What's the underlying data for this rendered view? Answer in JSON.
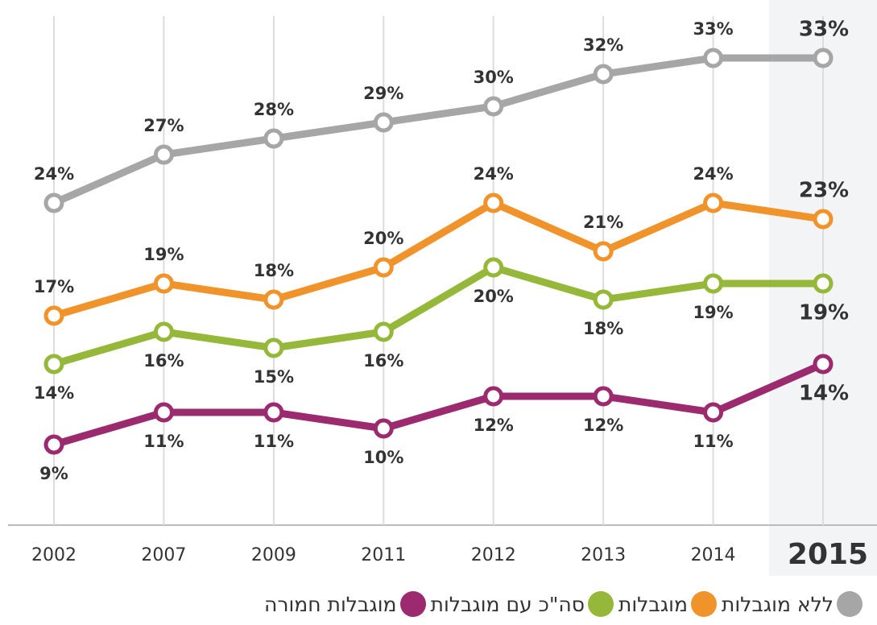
{
  "chart_data": {
    "type": "line",
    "categories": [
      "2002",
      "2007",
      "2009",
      "2011",
      "2012",
      "2013",
      "2014",
      "2015"
    ],
    "ylim": [
      4,
      36
    ],
    "series": [
      {
        "name": "ללא מוגבלות",
        "color": "#a6a6a6",
        "values": [
          24,
          27,
          28,
          29,
          30,
          32,
          33,
          33
        ],
        "value_labels": [
          "24%",
          "27%",
          "28%",
          "29%",
          "30%",
          "32%",
          "33%",
          "33%"
        ]
      },
      {
        "name": "מוגבלות",
        "color": "#f0932b",
        "values": [
          17,
          19,
          18,
          20,
          24,
          21,
          24,
          23
        ],
        "value_labels": [
          "17%",
          "19%",
          "18%",
          "20%",
          "24%",
          "21%",
          "24%",
          "23%"
        ]
      },
      {
        "name": "סה\"כ עם מוגבלות",
        "color": "#96b83a",
        "values": [
          14,
          16,
          15,
          16,
          20,
          18,
          19,
          19
        ],
        "value_labels": [
          "14%",
          "16%",
          "15%",
          "16%",
          "20%",
          "18%",
          "19%",
          "19%"
        ]
      },
      {
        "name": "מוגבלות חמורה",
        "color": "#9b2a6e",
        "values": [
          9,
          11,
          11,
          10,
          12,
          12,
          11,
          14
        ],
        "value_labels": [
          "9%",
          "11%",
          "11%",
          "10%",
          "12%",
          "12%",
          "11%",
          "14%"
        ]
      }
    ]
  }
}
